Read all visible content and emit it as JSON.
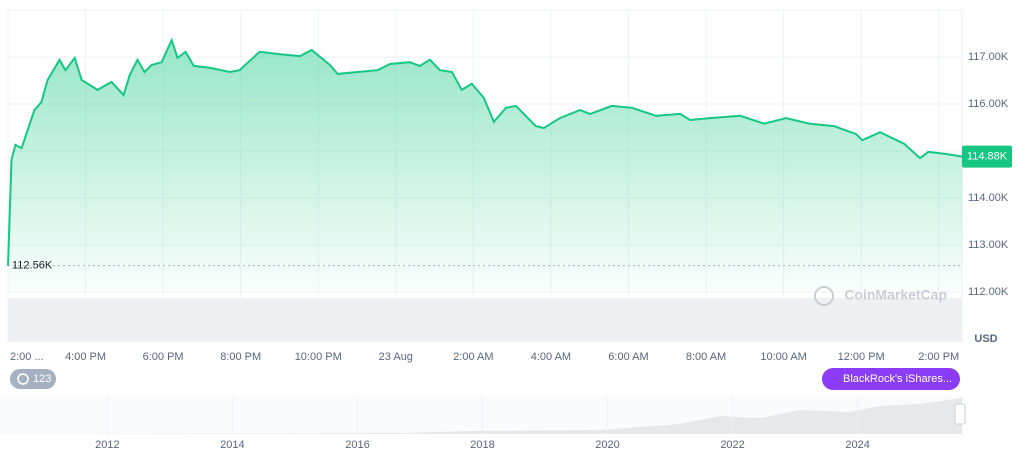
{
  "chart_data": {
    "type": "area",
    "currency": "USD",
    "watermark": "CoinMarketCap",
    "color": "#16c784",
    "x": [
      0,
      0.09,
      0.19,
      0.35,
      0.68,
      0.86,
      1.02,
      1.33,
      1.48,
      1.72,
      1.9,
      2.31,
      2.67,
      2.98,
      3.14,
      3.34,
      3.52,
      3.7,
      3.96,
      4.22,
      4.37,
      4.58,
      4.79,
      5.2,
      5.72,
      5.97,
      6.49,
      7.01,
      7.53,
      7.83,
      8.3,
      8.5,
      9.02,
      9.53,
      9.85,
      10.36,
      10.62,
      10.88,
      11.14,
      11.45,
      11.7,
      11.96,
      12.27,
      12.53,
      12.84,
      13.1,
      13.61,
      13.82,
      14.23,
      14.75,
      15.01,
      15.57,
      16.09,
      16.71,
      17.33,
      17.59,
      18.1,
      18.88,
      19.5,
      20.06,
      20.68,
      21.3,
      21.87,
      22.03,
      22.49,
      23.11,
      23.52,
      23.73,
      24.15,
      24.61
    ],
    "values": [
      112560,
      114810,
      115130,
      115060,
      115870,
      116040,
      116510,
      116940,
      116720,
      116980,
      116510,
      116300,
      116470,
      116190,
      116620,
      116940,
      116680,
      116830,
      116890,
      117360,
      116980,
      117110,
      116810,
      116770,
      116680,
      116720,
      117110,
      117060,
      117020,
      117150,
      116830,
      116640,
      116680,
      116720,
      116850,
      116890,
      116810,
      116940,
      116720,
      116680,
      116300,
      116430,
      116130,
      115620,
      115920,
      115960,
      115530,
      115490,
      115700,
      115870,
      115790,
      115960,
      115920,
      115750,
      115790,
      115660,
      115700,
      115750,
      115580,
      115700,
      115580,
      115530,
      115360,
      115230,
      115400,
      115150,
      114850,
      114980,
      114940,
      114880
    ],
    "xlim": [
      0,
      24.6
    ],
    "xticks": [
      {
        "value": 0,
        "label": "2:00 ..."
      },
      {
        "value": 2,
        "label": "4:00 PM"
      },
      {
        "value": 4,
        "label": "6:00 PM"
      },
      {
        "value": 6,
        "label": "8:00 PM"
      },
      {
        "value": 8,
        "label": "10:00 PM"
      },
      {
        "value": 10,
        "label": "23 Aug"
      },
      {
        "value": 12,
        "label": "2:00 AM"
      },
      {
        "value": 14,
        "label": "4:00 AM"
      },
      {
        "value": 16,
        "label": "6:00 AM"
      },
      {
        "value": 18,
        "label": "8:00 AM"
      },
      {
        "value": 20,
        "label": "10:00 AM"
      },
      {
        "value": 22,
        "label": "12:00 PM"
      },
      {
        "value": 24,
        "label": "2:00 PM"
      }
    ],
    "ylim": [
      112000,
      118000
    ],
    "yticks": [
      {
        "value": 112000,
        "label": "112.00K"
      },
      {
        "value": 113000,
        "label": "113.00K"
      },
      {
        "value": 114000,
        "label": "114.00K"
      },
      {
        "value": 115000,
        "label": "115.00K"
      },
      {
        "value": 116000,
        "label": "116.00K"
      },
      {
        "value": 117000,
        "label": "117.00K"
      }
    ],
    "start_label": {
      "value": 112560,
      "label": "112.56K"
    },
    "last_label": {
      "value": 114880,
      "label": "114.88K"
    },
    "events_badge": "123",
    "news_badge": "BlackRock's iShares...",
    "navigator_xlim": [
      2010.41,
      2025.67
    ],
    "navigator_xticks": [
      2012,
      2014,
      2016,
      2018,
      2020,
      2022,
      2024
    ]
  }
}
